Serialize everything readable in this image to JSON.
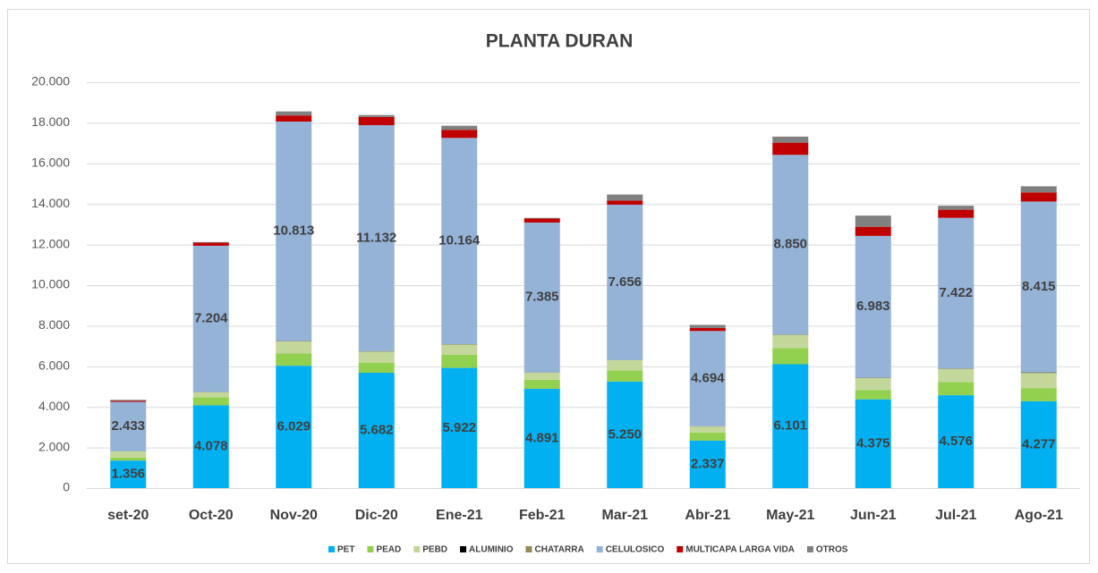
{
  "chart_data": {
    "type": "stacked-bar",
    "title": "PLANTA DURAN",
    "categories": [
      "set-20",
      "Oct-20",
      "Nov-20",
      "Dic-20",
      "Ene-21",
      "Feb-21",
      "Mar-21",
      "Abr-21",
      "May-21",
      "Jun-21",
      "Jul-21",
      "Ago-21"
    ],
    "series": [
      {
        "name": "PET",
        "color": "#00b0f0",
        "values": [
          1356,
          4078,
          6029,
          5682,
          5922,
          4891,
          5250,
          2337,
          6101,
          4375,
          4576,
          4277
        ],
        "value_labels": [
          "1.356",
          "4.078",
          "6.029",
          "5.682",
          "5.922",
          "4.891",
          "5.250",
          "2.337",
          "6.101",
          "4.375",
          "4.576",
          "4.277"
        ]
      },
      {
        "name": "PEAD",
        "color": "#92d050",
        "values": [
          150,
          400,
          600,
          500,
          650,
          450,
          550,
          400,
          800,
          450,
          650,
          650
        ]
      },
      {
        "name": "PEBD",
        "color": "#c4d79b",
        "values": [
          300,
          250,
          600,
          550,
          500,
          350,
          500,
          300,
          650,
          600,
          650,
          750
        ]
      },
      {
        "name": "ALUMINIO",
        "color": "#000000",
        "values": [
          5,
          5,
          10,
          10,
          10,
          5,
          5,
          5,
          10,
          10,
          10,
          20
        ]
      },
      {
        "name": "CHATARRA",
        "color": "#948a54",
        "values": [
          5,
          5,
          10,
          10,
          10,
          5,
          5,
          5,
          10,
          10,
          10,
          10
        ]
      },
      {
        "name": "CELULOSICO",
        "color": "#95b3d7",
        "values": [
          2433,
          7204,
          10813,
          11132,
          10164,
          7385,
          7656,
          4694,
          8850,
          6983,
          7422,
          8415
        ],
        "value_labels": [
          "2.433",
          "7.204",
          "10.813",
          "11.132",
          "10.164",
          "7.385",
          "7.656",
          "4.694",
          "8.850",
          "6.983",
          "7.422",
          "8.415"
        ]
      },
      {
        "name": "MULTICAPA LARGA VIDA",
        "color": "#c00000",
        "values": [
          50,
          150,
          300,
          400,
          400,
          200,
          200,
          150,
          600,
          450,
          400,
          450
        ]
      },
      {
        "name": "OTROS",
        "color": "#808080",
        "values": [
          50,
          30,
          200,
          100,
          200,
          30,
          300,
          150,
          300,
          550,
          200,
          300
        ]
      }
    ],
    "ylim": [
      0,
      20000
    ],
    "yticks": [
      0,
      {
        "value": 2000,
        "label": "2.000"
      },
      {
        "value": 4000,
        "label": "4.000"
      },
      {
        "value": 6000,
        "label": "6.000"
      },
      {
        "value": 8000,
        "label": "8.000"
      },
      {
        "value": 10000,
        "label": "10.000"
      },
      {
        "value": 12000,
        "label": "12.000"
      },
      {
        "value": 14000,
        "label": "14.000"
      },
      {
        "value": 16000,
        "label": "16.000"
      },
      {
        "value": 18000,
        "label": "18.000"
      },
      {
        "value": 20000,
        "label": "20.000"
      }
    ],
    "grid": true,
    "legend": "bottom"
  }
}
